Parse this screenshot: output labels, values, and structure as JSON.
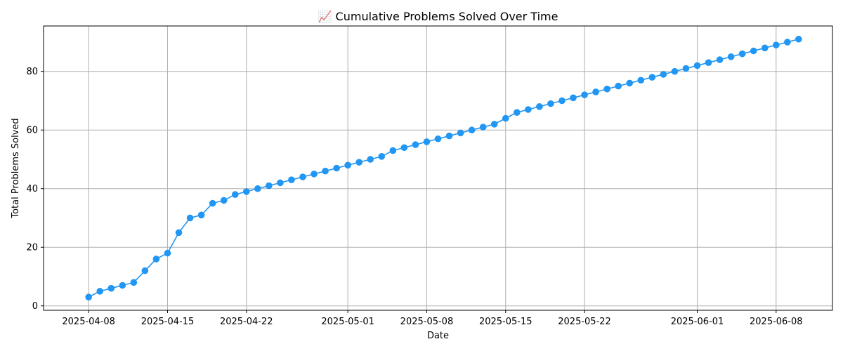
{
  "chart_data": {
    "type": "line",
    "title": "📈 Cumulative Problems Solved Over Time",
    "xlabel": "Date",
    "ylabel": "Total Problems Solved",
    "x_ticks": [
      "2025-04-08",
      "2025-04-15",
      "2025-04-22",
      "2025-05-01",
      "2025-05-08",
      "2025-05-15",
      "2025-05-22",
      "2025-06-01",
      "2025-06-08"
    ],
    "y_ticks": [
      0,
      20,
      40,
      60,
      80
    ],
    "xlim": [
      "2025-04-04",
      "2025-06-13"
    ],
    "ylim": [
      -1.5,
      95.5
    ],
    "grid": true,
    "color": "#2196f3",
    "series": [
      {
        "x": [
          "2025-04-08",
          "2025-04-09",
          "2025-04-10",
          "2025-04-11",
          "2025-04-12",
          "2025-04-13",
          "2025-04-14",
          "2025-04-15",
          "2025-04-16",
          "2025-04-17",
          "2025-04-18",
          "2025-04-19",
          "2025-04-20",
          "2025-04-21",
          "2025-04-22",
          "2025-04-23",
          "2025-04-24",
          "2025-04-25",
          "2025-04-26",
          "2025-04-27",
          "2025-04-28",
          "2025-04-29",
          "2025-04-30",
          "2025-05-01",
          "2025-05-02",
          "2025-05-03",
          "2025-05-04",
          "2025-05-05",
          "2025-05-06",
          "2025-05-07",
          "2025-05-08",
          "2025-05-09",
          "2025-05-10",
          "2025-05-11",
          "2025-05-12",
          "2025-05-13",
          "2025-05-14",
          "2025-05-15",
          "2025-05-16",
          "2025-05-17",
          "2025-05-18",
          "2025-05-19",
          "2025-05-20",
          "2025-05-21",
          "2025-05-22",
          "2025-05-23",
          "2025-05-24",
          "2025-05-25",
          "2025-05-26",
          "2025-05-27",
          "2025-05-28",
          "2025-05-29",
          "2025-05-30",
          "2025-05-31",
          "2025-06-01",
          "2025-06-02",
          "2025-06-03",
          "2025-06-04",
          "2025-06-05",
          "2025-06-06",
          "2025-06-07",
          "2025-06-08",
          "2025-06-09",
          "2025-06-10"
        ],
        "y": [
          3,
          5,
          6,
          7,
          8,
          12,
          16,
          18,
          25,
          30,
          31,
          35,
          36,
          38,
          39,
          40,
          41,
          42,
          43,
          44,
          45,
          46,
          47,
          48,
          49,
          50,
          51,
          53,
          54,
          55,
          56,
          57,
          58,
          59,
          60,
          61,
          62,
          64,
          66,
          67,
          68,
          69,
          70,
          71,
          72,
          73,
          74,
          75,
          76,
          77,
          78,
          79,
          80,
          81,
          82,
          83,
          84,
          85,
          86,
          87,
          88,
          89,
          90,
          91
        ]
      }
    ]
  }
}
